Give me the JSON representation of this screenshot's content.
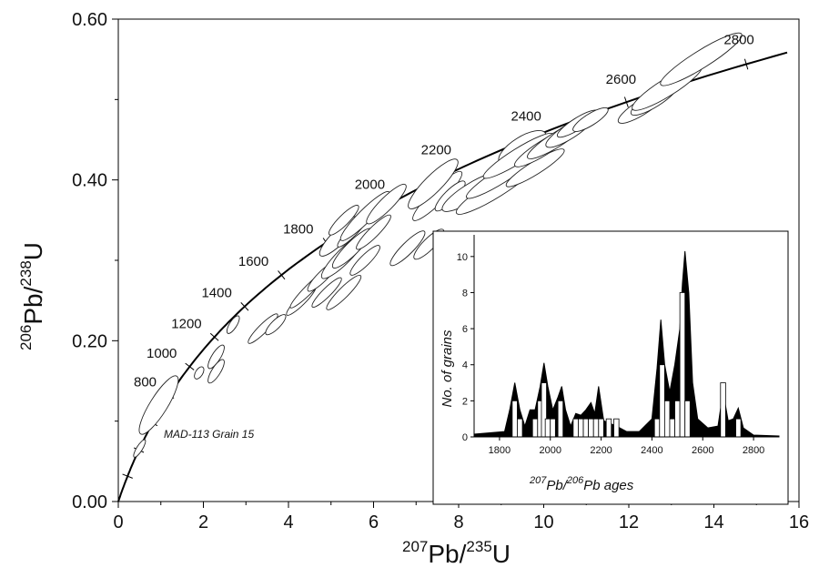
{
  "chart_data": [
    {
      "type": "scatter",
      "description_role": "concordia",
      "x_label": {
        "sup": "207",
        "base": "Pb/",
        "sup2": "235",
        "base2": "U"
      },
      "y_label": {
        "sup": "206",
        "base": "Pb/",
        "sup2": "238",
        "base2": "U"
      },
      "xlim": [
        0,
        16
      ],
      "ylim": [
        0,
        0.6
      ],
      "x_ticks": [
        "0",
        "2",
        "4",
        "6",
        "8",
        "10",
        "12",
        "14",
        "16"
      ],
      "y_ticks": [
        "0.00",
        "0.20",
        "0.40",
        "0.60"
      ],
      "concordia_age_labels": [
        "800",
        "1000",
        "1200",
        "1400",
        "1600",
        "1800",
        "2000",
        "2200",
        "2400",
        "2600",
        "2800"
      ],
      "annotation": "MAD-113 Grain 15",
      "ellipses": [
        {
          "x": 0.95,
          "y": 0.12,
          "dx": 0.5,
          "dy": 0.012,
          "dark": true
        },
        {
          "x": 0.5,
          "y": 0.066,
          "dx": 0.15,
          "dy": 0.004,
          "dark": true
        },
        {
          "x": 1.9,
          "y": 0.16,
          "dx": 0.1,
          "dy": 0.005
        },
        {
          "x": 2.3,
          "y": 0.18,
          "dx": 0.2,
          "dy": 0.006
        },
        {
          "x": 2.3,
          "y": 0.162,
          "dx": 0.2,
          "dy": 0.006
        },
        {
          "x": 2.7,
          "y": 0.22,
          "dx": 0.15,
          "dy": 0.005
        },
        {
          "x": 3.4,
          "y": 0.215,
          "dx": 0.3,
          "dy": 0.006
        },
        {
          "x": 3.7,
          "y": 0.22,
          "dx": 0.2,
          "dy": 0.006
        },
        {
          "x": 4.3,
          "y": 0.25,
          "dx": 0.3,
          "dy": 0.006
        },
        {
          "x": 4.5,
          "y": 0.265,
          "dx": 0.4,
          "dy": 0.006
        },
        {
          "x": 4.9,
          "y": 0.26,
          "dx": 0.3,
          "dy": 0.006
        },
        {
          "x": 5.3,
          "y": 0.26,
          "dx": 0.35,
          "dy": 0.007
        },
        {
          "x": 4.8,
          "y": 0.28,
          "dx": 0.3,
          "dy": 0.007
        },
        {
          "x": 5.2,
          "y": 0.33,
          "dx": 0.4,
          "dy": 0.01
        },
        {
          "x": 5.3,
          "y": 0.305,
          "dx": 0.45,
          "dy": 0.01
        },
        {
          "x": 5.5,
          "y": 0.315,
          "dx": 0.4,
          "dy": 0.009
        },
        {
          "x": 5.8,
          "y": 0.3,
          "dx": 0.3,
          "dy": 0.007
        },
        {
          "x": 6.0,
          "y": 0.335,
          "dx": 0.35,
          "dy": 0.007
        },
        {
          "x": 5.5,
          "y": 0.335,
          "dx": 0.3,
          "dy": 0.006
        },
        {
          "x": 5.8,
          "y": 0.355,
          "dx": 0.5,
          "dy": 0.009
        },
        {
          "x": 5.3,
          "y": 0.35,
          "dx": 0.3,
          "dy": 0.007
        },
        {
          "x": 6.3,
          "y": 0.37,
          "dx": 0.4,
          "dy": 0.009
        },
        {
          "x": 6.8,
          "y": 0.315,
          "dx": 0.35,
          "dy": 0.008
        },
        {
          "x": 7.3,
          "y": 0.32,
          "dx": 0.3,
          "dy": 0.008
        },
        {
          "x": 7.5,
          "y": 0.38,
          "dx": 0.5,
          "dy": 0.01
        },
        {
          "x": 7.8,
          "y": 0.38,
          "dx": 0.3,
          "dy": 0.008
        },
        {
          "x": 7.4,
          "y": 0.395,
          "dx": 0.5,
          "dy": 0.012
        },
        {
          "x": 8.3,
          "y": 0.385,
          "dx": 0.5,
          "dy": 0.012
        },
        {
          "x": 8.9,
          "y": 0.39,
          "dx": 0.7,
          "dy": 0.012
        },
        {
          "x": 9.0,
          "y": 0.405,
          "dx": 0.6,
          "dy": 0.01
        },
        {
          "x": 9.5,
          "y": 0.44,
          "dx": 0.4,
          "dy": 0.015,
          "big": true
        },
        {
          "x": 9.4,
          "y": 0.43,
          "dx": 0.6,
          "dy": 0.01
        },
        {
          "x": 9.8,
          "y": 0.415,
          "dx": 0.5,
          "dy": 0.009
        },
        {
          "x": 10.0,
          "y": 0.44,
          "dx": 0.5,
          "dy": 0.01
        },
        {
          "x": 10.3,
          "y": 0.45,
          "dx": 0.5,
          "dy": 0.01
        },
        {
          "x": 10.6,
          "y": 0.46,
          "dx": 0.4,
          "dy": 0.01
        },
        {
          "x": 10.8,
          "y": 0.47,
          "dx": 0.35,
          "dy": 0.008
        },
        {
          "x": 11.1,
          "y": 0.475,
          "dx": 0.3,
          "dy": 0.008
        },
        {
          "x": 12.3,
          "y": 0.49,
          "dx": 0.4,
          "dy": 0.01
        },
        {
          "x": 12.6,
          "y": 0.5,
          "dx": 0.4,
          "dy": 0.01
        },
        {
          "x": 12.9,
          "y": 0.515,
          "dx": 0.6,
          "dy": 0.012,
          "big": true
        },
        {
          "x": 13.7,
          "y": 0.55,
          "dx": 0.7,
          "dy": 0.012
        }
      ]
    },
    {
      "type": "area",
      "description_role": "inset",
      "ylabel": "No. of grains",
      "xlabel": {
        "sup": "207",
        "base": "Pb/",
        "sup2": "206",
        "base2": "Pb ages"
      },
      "xlim": [
        1700,
        2900
      ],
      "ylim": [
        0,
        11
      ],
      "x_ticks": [
        "1800",
        "2000",
        "2200",
        "2400",
        "2600",
        "2800"
      ],
      "y_ticks": [
        "0",
        "2",
        "4",
        "6",
        "8",
        "10"
      ],
      "curve": [
        [
          1700,
          0.15
        ],
        [
          1820,
          0.3
        ],
        [
          1840,
          1.5
        ],
        [
          1860,
          3.0
        ],
        [
          1880,
          1.5
        ],
        [
          1900,
          0.6
        ],
        [
          1920,
          1.5
        ],
        [
          1940,
          1.5
        ],
        [
          1960,
          2.8
        ],
        [
          1975,
          4.1
        ],
        [
          1990,
          2.8
        ],
        [
          2010,
          1.5
        ],
        [
          2030,
          2.2
        ],
        [
          2045,
          2.8
        ],
        [
          2060,
          1.5
        ],
        [
          2080,
          0.6
        ],
        [
          2100,
          1.3
        ],
        [
          2120,
          1.2
        ],
        [
          2140,
          1.5
        ],
        [
          2160,
          1.9
        ],
        [
          2175,
          1.3
        ],
        [
          2190,
          2.8
        ],
        [
          2210,
          0.9
        ],
        [
          2260,
          0.6
        ],
        [
          2300,
          0.3
        ],
        [
          2350,
          0.3
        ],
        [
          2400,
          1.0
        ],
        [
          2420,
          3.8
        ],
        [
          2435,
          6.5
        ],
        [
          2450,
          4.0
        ],
        [
          2470,
          2.5
        ],
        [
          2490,
          4.0
        ],
        [
          2510,
          6.0
        ],
        [
          2520,
          8.5
        ],
        [
          2530,
          10.3
        ],
        [
          2545,
          8.0
        ],
        [
          2560,
          3.0
        ],
        [
          2580,
          1.0
        ],
        [
          2620,
          0.5
        ],
        [
          2660,
          0.6
        ],
        [
          2680,
          2.5
        ],
        [
          2700,
          0.9
        ],
        [
          2720,
          1.0
        ],
        [
          2740,
          1.6
        ],
        [
          2760,
          0.5
        ],
        [
          2800,
          0.1
        ],
        [
          2900,
          0.05
        ]
      ],
      "bars": [
        {
          "x": 1860,
          "h": 2
        },
        {
          "x": 1880,
          "h": 1
        },
        {
          "x": 1940,
          "h": 1
        },
        {
          "x": 1960,
          "h": 2
        },
        {
          "x": 1975,
          "h": 3
        },
        {
          "x": 1990,
          "h": 1
        },
        {
          "x": 2010,
          "h": 1
        },
        {
          "x": 2040,
          "h": 2
        },
        {
          "x": 2100,
          "h": 1
        },
        {
          "x": 2120,
          "h": 1
        },
        {
          "x": 2140,
          "h": 1
        },
        {
          "x": 2160,
          "h": 1
        },
        {
          "x": 2180,
          "h": 1
        },
        {
          "x": 2200,
          "h": 1
        },
        {
          "x": 2230,
          "h": 1
        },
        {
          "x": 2260,
          "h": 1
        },
        {
          "x": 2420,
          "h": 1
        },
        {
          "x": 2440,
          "h": 4
        },
        {
          "x": 2460,
          "h": 2
        },
        {
          "x": 2480,
          "h": 1
        },
        {
          "x": 2500,
          "h": 2
        },
        {
          "x": 2520,
          "h": 8
        },
        {
          "x": 2540,
          "h": 2
        },
        {
          "x": 2680,
          "h": 3
        },
        {
          "x": 2740,
          "h": 1
        }
      ]
    }
  ]
}
